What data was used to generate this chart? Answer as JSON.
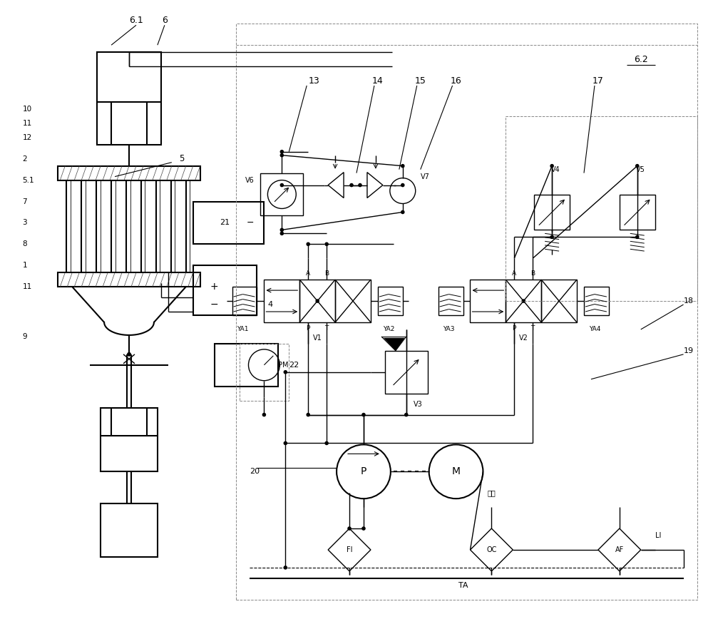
{
  "bg": "#ffffff",
  "lc": "#000000",
  "gray": "#888888",
  "labels": {
    "6_1": "6.1",
    "6": "6",
    "6_2": "6.2",
    "5": "5",
    "5_1": "5.1",
    "4": "4",
    "10": "10",
    "11": "11",
    "12": "12",
    "2": "2",
    "7": "7",
    "3": "3",
    "8": "8",
    "1": "1",
    "9": "9",
    "21": "21",
    "22": "22",
    "13": "13",
    "14": "14",
    "15": "15",
    "16": "16",
    "17": "17",
    "18": "18",
    "19": "19",
    "20": "20",
    "V1": "V1",
    "V2": "V2",
    "V3": "V3",
    "V4": "V4",
    "V5": "V5",
    "V6": "V6",
    "V7": "V7",
    "YA1": "YA1",
    "YA2": "YA2",
    "YA3": "YA3",
    "YA4": "YA4",
    "PM": "PM",
    "P": "P",
    "M": "M",
    "FI": "FI",
    "OC": "OC",
    "AF": "AF",
    "TA": "TA",
    "LI": "LI",
    "oil": "馀油",
    "plus": "+",
    "minus": "−"
  }
}
